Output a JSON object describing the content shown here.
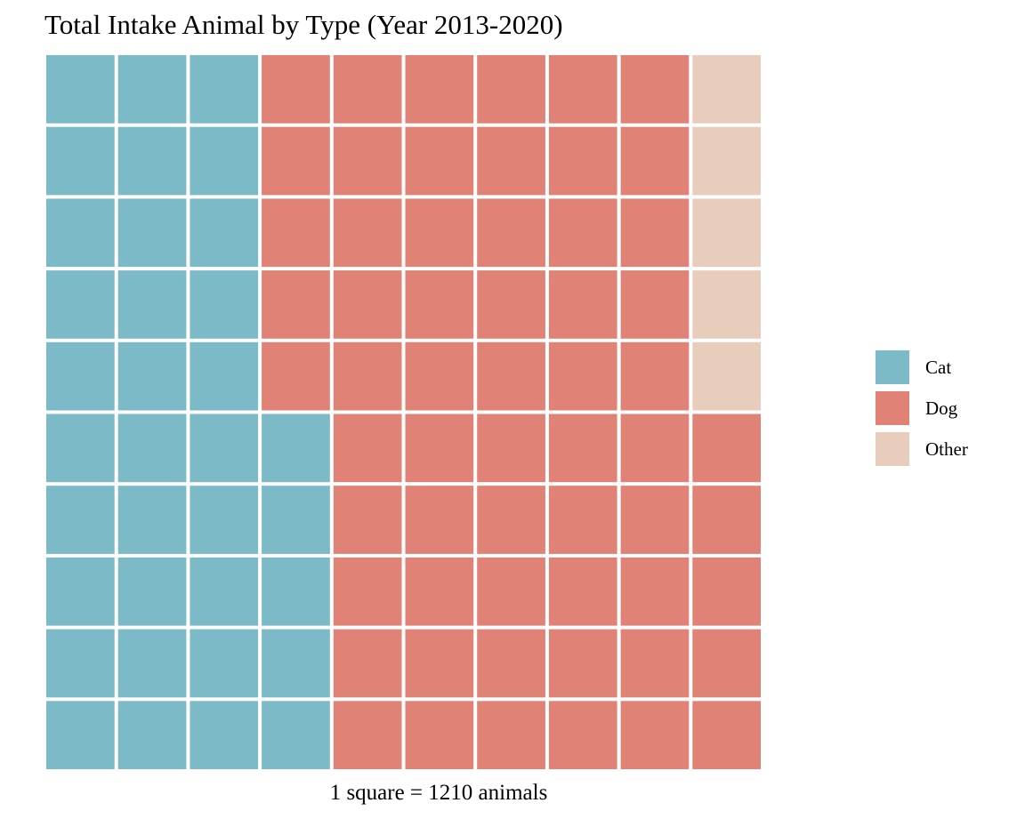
{
  "chart_data": {
    "type": "waffle",
    "title": "Total Intake Animal by Type (Year 2013-2020)",
    "caption": "1 square = 1210 animals",
    "rows": 10,
    "columns": 10,
    "categories": [
      "Cat",
      "Dog",
      "Other"
    ],
    "values": [
      35,
      60,
      5
    ],
    "unit_per_square": 1210,
    "colors": {
      "Cat": "#7bbac6",
      "Dog": "#e08276",
      "Other": "#e8cdbd"
    },
    "grid": false,
    "legend_position": "right"
  }
}
